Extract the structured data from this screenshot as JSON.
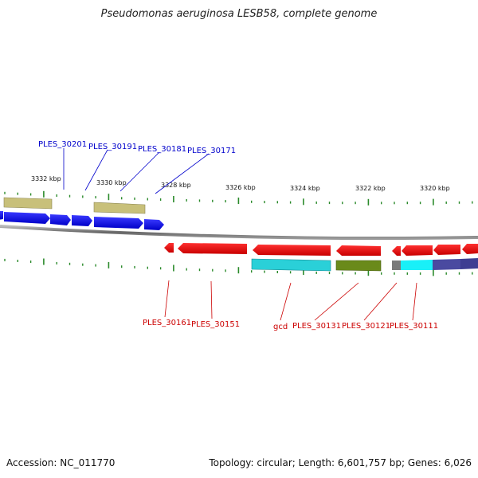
{
  "title": "Pseudomonas aeruginosa LESB58, complete genome",
  "footer": {
    "accession": "Accession: NC_011770",
    "summary": "Topology: circular; Length: 6,601,757 bp; Genes: 6,026"
  },
  "scale": {
    "ticks": [
      "3332 kbp",
      "3330 kbp",
      "3328 kbp",
      "3326 kbp",
      "3324 kbp",
      "3322 kbp",
      "3320 kbp"
    ]
  },
  "colors": {
    "forward_cds": "#0000ff",
    "reverse_cds": "#ff0000",
    "forward_label": "#0000cc",
    "reverse_label": "#cc0000",
    "backbone": "#777777",
    "tick": "#2a8a2a",
    "khaki_feature": "#c8c07a",
    "cyan_feature": "#2ad0d8",
    "olive_feature": "#6a8a1a",
    "slate_feature": "#4a4aa0"
  },
  "genes": {
    "forward": [
      "PLES_30201",
      "PLES_30191",
      "PLES_30181",
      "PLES_30171"
    ],
    "reverse": [
      "PLES_30161",
      "PLES_30151",
      "gcd",
      "PLES_30131",
      "PLES_30121",
      "PLES_30111"
    ]
  }
}
